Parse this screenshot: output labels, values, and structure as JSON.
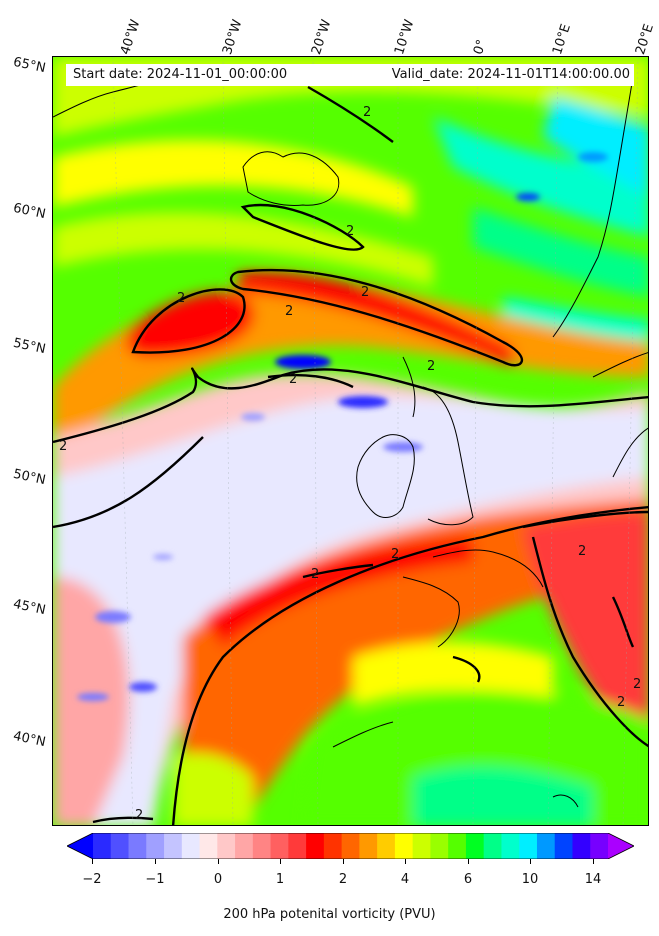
{
  "header": {
    "start_label": "Start date: 2024-11-01_00:00:00",
    "valid_label": "Valid_date: 2024-11-01T14:00:00.00"
  },
  "map": {
    "lon_labels": [
      "40°W",
      "30°W",
      "20°W",
      "10°W",
      "0°",
      "10°E",
      "20°E"
    ],
    "lat_labels": [
      "65°N",
      "60°N",
      "55°N",
      "50°N",
      "45°N",
      "40°N"
    ],
    "contour_labels": [
      "2",
      "2",
      "2",
      "2",
      "2",
      "2",
      "2",
      "2",
      "2",
      "2",
      "2",
      "2",
      "2",
      "2"
    ]
  },
  "colorbar": {
    "ticks": [
      "−2",
      "−1",
      "0",
      "1",
      "2",
      "4",
      "6",
      "10",
      "14"
    ],
    "label": "200 hPa potenital vorticity (PVU)",
    "colors": [
      "#0000ff",
      "#2a2aff",
      "#5050ff",
      "#7a7aff",
      "#a0a0ff",
      "#c4c4ff",
      "#e8e8ff",
      "#ffe8e8",
      "#ffc8c8",
      "#ffa6a6",
      "#ff8484",
      "#ff6060",
      "#ff3a3a",
      "#ff0000",
      "#ff3300",
      "#ff6600",
      "#ff9900",
      "#ffcc00",
      "#ffff00",
      "#ccff00",
      "#99ff00",
      "#55ff00",
      "#00ff22",
      "#00ff88",
      "#00ffcc",
      "#00eeff",
      "#0099ff",
      "#0044ff",
      "#3300ff",
      "#7700ff",
      "#aa00ff"
    ]
  }
}
